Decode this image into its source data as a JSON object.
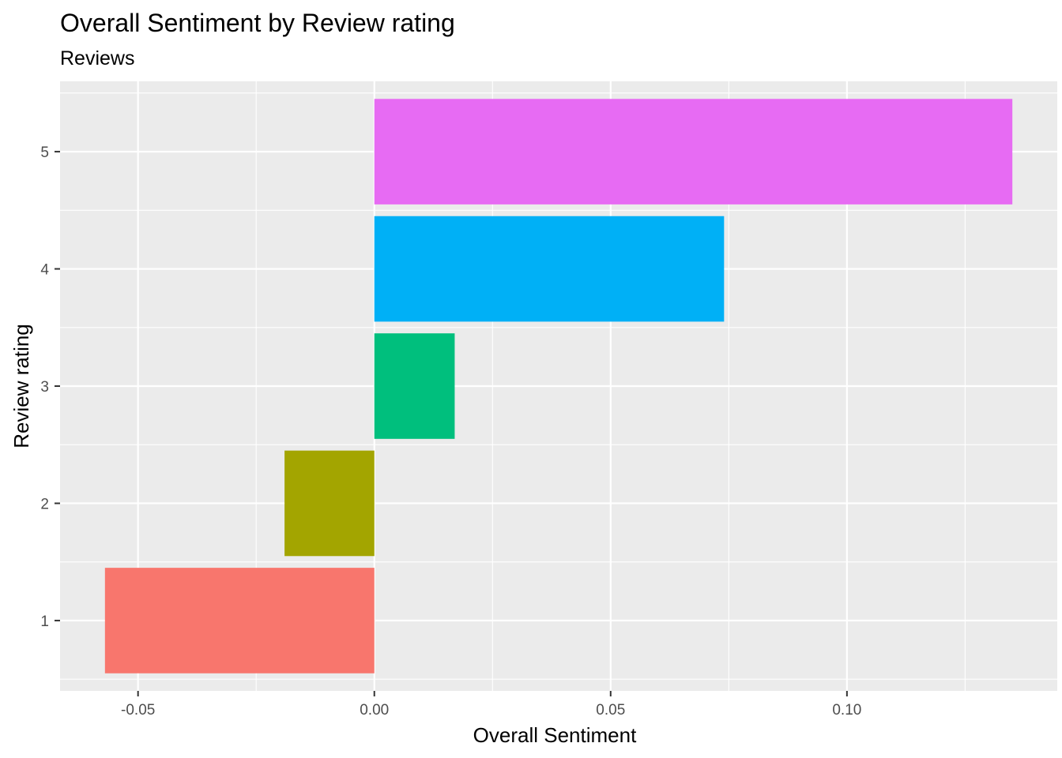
{
  "chart_data": {
    "type": "bar",
    "orientation": "horizontal",
    "title": "Overall Sentiment by Review rating",
    "subtitle": "Reviews",
    "xlabel": "Overall Sentiment",
    "ylabel": "Review rating",
    "categories": [
      "1",
      "2",
      "3",
      "4",
      "5"
    ],
    "values": [
      -0.057,
      -0.019,
      0.017,
      0.074,
      0.135
    ],
    "colors": [
      "#F8766D",
      "#A3A500",
      "#00BF7D",
      "#00B0F6",
      "#E76BF3"
    ],
    "xlim": [
      -0.0665,
      0.1445
    ],
    "x_ticks": [
      -0.05,
      0.0,
      0.05,
      0.1
    ],
    "x_tick_labels": [
      "-0.05",
      "0.00",
      "0.05",
      "0.10"
    ],
    "grid": true,
    "panel_background": "#EBEBEB",
    "grid_color": "#FFFFFF",
    "legend": "none"
  }
}
